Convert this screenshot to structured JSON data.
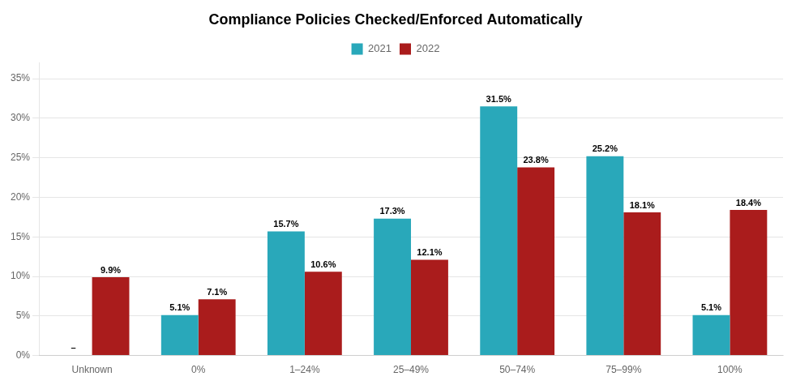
{
  "chart_data": {
    "type": "bar",
    "title": "Compliance Policies Checked/Enforced Automatically",
    "categories": [
      "Unknown",
      "0%",
      "1–24%",
      "25–49%",
      "50–74%",
      "75–99%",
      "100%"
    ],
    "series": [
      {
        "name": "2021",
        "color": "#29A8BA",
        "values": [
          null,
          5.1,
          15.7,
          17.3,
          31.5,
          25.2,
          5.1
        ],
        "value_labels": [
          "–",
          "5.1%",
          "15.7%",
          "17.3%",
          "31.5%",
          "25.2%",
          "5.1%"
        ]
      },
      {
        "name": "2022",
        "color": "#AA1C1C",
        "values": [
          9.9,
          7.1,
          10.6,
          12.1,
          23.8,
          18.1,
          18.4
        ],
        "value_labels": [
          "9.9%",
          "7.1%",
          "10.6%",
          "12.1%",
          "23.8%",
          "18.1%",
          "18.4%"
        ]
      }
    ],
    "ylim": [
      0,
      37
    ],
    "yticks": [
      {
        "value": 0,
        "label": "0%"
      },
      {
        "value": 5,
        "label": "5%"
      },
      {
        "value": 10,
        "label": "10%"
      },
      {
        "value": 15,
        "label": "15%"
      },
      {
        "value": 20,
        "label": "20%"
      },
      {
        "value": 25,
        "label": "25%"
      },
      {
        "value": 30,
        "label": "30%"
      },
      {
        "value": 35,
        "label": "35%"
      }
    ],
    "grid": true,
    "legend": "top",
    "data_labels": true
  }
}
